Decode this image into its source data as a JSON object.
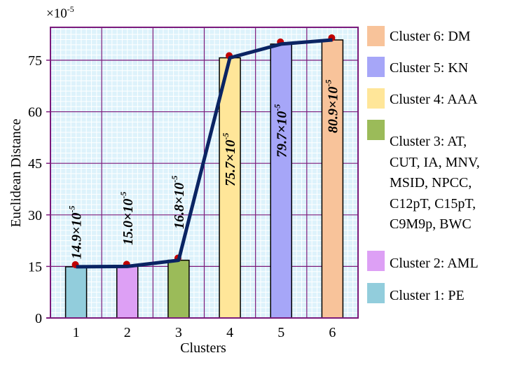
{
  "chart_data": {
    "type": "bar",
    "title": "",
    "xlabel": "Clusters",
    "ylabel": "Euclidean Distance",
    "y_multiplier": "×10",
    "y_multiplier_exponent": "-5",
    "categories": [
      "1",
      "2",
      "3",
      "4",
      "5",
      "6"
    ],
    "values": [
      14.9,
      15.0,
      16.8,
      75.7,
      79.7,
      80.9
    ],
    "data_label_mantissas": [
      "14.9×10",
      "15.0×10",
      "16.8×10",
      "75.7×10",
      "79.7×10",
      "80.9×10"
    ],
    "data_label_exponent": "-5",
    "ylim": [
      0,
      85
    ],
    "yticks": [
      0,
      15,
      30,
      45,
      60,
      75
    ],
    "ytick_labels": [
      "0",
      "15",
      "30",
      "45",
      "60",
      "75"
    ],
    "grid": true,
    "overlay_line": true,
    "legend_placement": "right",
    "bar_colors": [
      "#92cddc",
      "#dda0f5",
      "#9bbb59",
      "#ffe699",
      "#a6a6f8",
      "#f8c39a"
    ],
    "line_color": "#0a2463",
    "marker_color": "#c00000",
    "plot_background": "#ddf2fb",
    "grid_major_color": "#7b1a7b",
    "legend": [
      {
        "lines": [
          "Cluster 6: DM"
        ],
        "color": "#f8c39a"
      },
      {
        "lines": [
          "Cluster 5: KN"
        ],
        "color": "#a6a6f8"
      },
      {
        "lines": [
          "Cluster 4: AAA"
        ],
        "color": "#ffe699"
      },
      {
        "lines": [
          "Cluster 3: AT,",
          "CUT, IA, MNV,",
          "MSID, NPCC,",
          "C12pT, C15pT,",
          "C9M9p, BWC"
        ],
        "color": "#9bbb59"
      },
      {
        "lines": [
          "Cluster 2: AML"
        ],
        "color": "#dda0f5"
      },
      {
        "lines": [
          "Cluster 1: PE"
        ],
        "color": "#92cddc"
      }
    ]
  }
}
